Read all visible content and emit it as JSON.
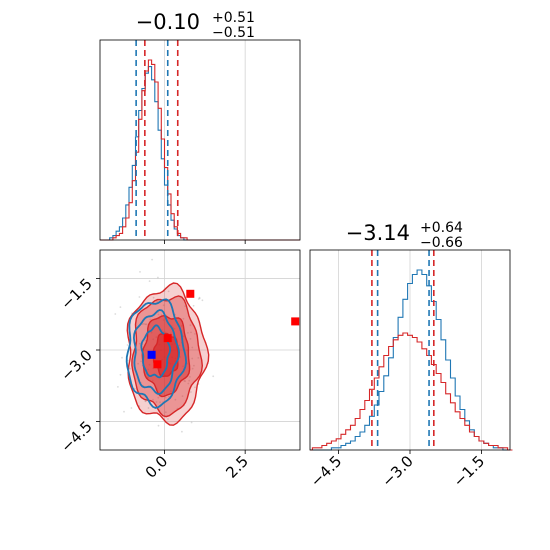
{
  "colors": {
    "series_a": "#1f77b4",
    "series_b": "#d62728",
    "grid": "#d3d3d3",
    "axis": "#000000",
    "truth_point_b": "#ff0000",
    "truth_point_a": "#0000ff"
  },
  "chart_data": [
    {
      "panel": "top-left",
      "type": "histogram",
      "title": {
        "main": "−0.10",
        "sup": "+0.51",
        "sub": "−0.51"
      },
      "xlim": [
        -2.0,
        4.2
      ],
      "grid": true,
      "series": [
        {
          "color_key": "series_a",
          "bin_start": -1.9,
          "bin_width": 0.1,
          "counts": [
            0,
            0,
            1,
            2,
            4,
            6,
            10,
            16,
            24,
            34,
            47,
            59,
            69,
            76,
            79,
            73,
            63,
            50,
            37,
            25,
            16,
            9,
            5,
            2,
            1,
            0,
            0
          ],
          "quantiles": [
            -0.88,
            0.1
          ]
        },
        {
          "color_key": "series_b",
          "bin_start": -1.9,
          "bin_width": 0.1,
          "counts": [
            0,
            0,
            0,
            1,
            2,
            3,
            6,
            10,
            17,
            27,
            40,
            55,
            68,
            77,
            82,
            80,
            72,
            60,
            46,
            33,
            21,
            12,
            6,
            3,
            1,
            1,
            0
          ],
          "quantiles": [
            -0.61,
            0.41
          ]
        }
      ]
    },
    {
      "panel": "bottom-left",
      "type": "contour",
      "x_ticks": [
        0.0,
        2.5
      ],
      "x_tick_labels": [
        "0.0",
        "2.5"
      ],
      "y_ticks": [
        -1.5,
        -3.0,
        -4.5
      ],
      "y_tick_labels": [
        "−1.5",
        "−3.0",
        "−4.5"
      ],
      "xlim": [
        -2.0,
        4.2
      ],
      "ylim": [
        -5.1,
        -0.9
      ],
      "grid": true,
      "series": [
        {
          "color_key": "series_a",
          "center": [
            -0.28,
            -3.05
          ],
          "sigma": [
            0.42,
            0.52
          ],
          "levels": [
            1.0,
            1.6,
            2.1
          ]
        },
        {
          "color_key": "series_b",
          "center": [
            0.05,
            -3.1
          ],
          "sigma": [
            0.55,
            0.64
          ],
          "levels": [
            0.7,
            1.3,
            1.9,
            2.2
          ]
        }
      ],
      "points": [
        {
          "color_key": "truth_point_b",
          "x": 0.8,
          "y": -1.82
        },
        {
          "color_key": "truth_point_b",
          "x": 4.05,
          "y": -2.4
        },
        {
          "color_key": "truth_point_b",
          "x": 0.1,
          "y": -2.75
        },
        {
          "color_key": "truth_point_b",
          "x": -0.22,
          "y": -3.3
        },
        {
          "color_key": "truth_point_a",
          "x": -0.4,
          "y": -3.1
        }
      ]
    },
    {
      "panel": "bottom-right",
      "type": "histogram",
      "title": {
        "main": "−3.14",
        "sup": "+0.64",
        "sub": "−0.66"
      },
      "x_ticks": [
        -4.5,
        -3.0,
        -1.5
      ],
      "x_tick_labels": [
        "−4.5",
        "−3.0",
        "−1.5"
      ],
      "xlim": [
        -5.1,
        -0.9
      ],
      "grid": true,
      "series": [
        {
          "color_key": "series_a",
          "bin_start": -5.05,
          "bin_width": 0.1,
          "counts": [
            0,
            0,
            0,
            0,
            1,
            1,
            2,
            3,
            4,
            6,
            8,
            11,
            15,
            20,
            26,
            33,
            41,
            50,
            59,
            67,
            74,
            78,
            80,
            78,
            73,
            66,
            58,
            49,
            40,
            32,
            24,
            18,
            13,
            9,
            6,
            4,
            3,
            2,
            1,
            1,
            0,
            0
          ],
          "quantiles": [
            -3.68,
            -2.6
          ]
        },
        {
          "color_key": "series_b",
          "bin_start": -5.05,
          "bin_width": 0.1,
          "counts": [
            1,
            1,
            2,
            3,
            4,
            5,
            7,
            9,
            11,
            14,
            18,
            22,
            27,
            32,
            37,
            42,
            46,
            49,
            51,
            52,
            51,
            50,
            48,
            45,
            42,
            38,
            34,
            30,
            25,
            21,
            17,
            14,
            11,
            8,
            6,
            4,
            3,
            2,
            2,
            1,
            1,
            0
          ],
          "quantiles": [
            -3.8,
            -2.5
          ]
        }
      ]
    }
  ]
}
